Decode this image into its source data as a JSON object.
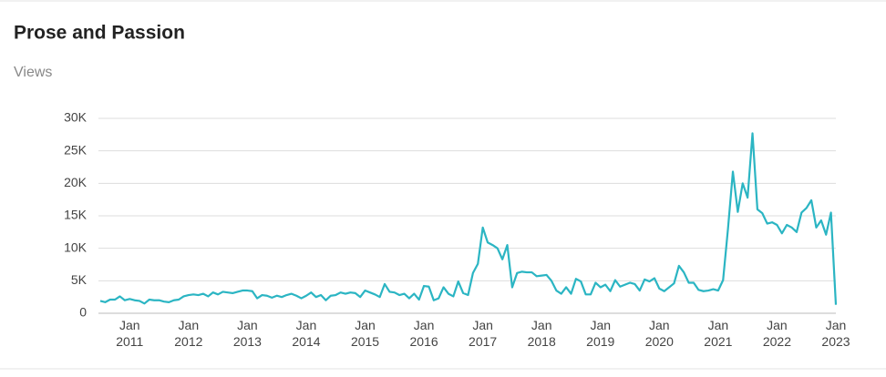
{
  "chart_data": {
    "type": "line",
    "title": "Prose and Passion",
    "subtitle": "Views",
    "x": [
      "2010-07",
      "2010-08",
      "2010-09",
      "2010-10",
      "2010-11",
      "2010-12",
      "2011-01",
      "2011-02",
      "2011-03",
      "2011-04",
      "2011-05",
      "2011-06",
      "2011-07",
      "2011-08",
      "2011-09",
      "2011-10",
      "2011-11",
      "2011-12",
      "2012-01",
      "2012-02",
      "2012-03",
      "2012-04",
      "2012-05",
      "2012-06",
      "2012-07",
      "2012-08",
      "2012-09",
      "2012-10",
      "2012-11",
      "2012-12",
      "2013-01",
      "2013-02",
      "2013-03",
      "2013-04",
      "2013-05",
      "2013-06",
      "2013-07",
      "2013-08",
      "2013-09",
      "2013-10",
      "2013-11",
      "2013-12",
      "2014-01",
      "2014-02",
      "2014-03",
      "2014-04",
      "2014-05",
      "2014-06",
      "2014-07",
      "2014-08",
      "2014-09",
      "2014-10",
      "2014-11",
      "2014-12",
      "2015-01",
      "2015-02",
      "2015-03",
      "2015-04",
      "2015-05",
      "2015-06",
      "2015-07",
      "2015-08",
      "2015-09",
      "2015-10",
      "2015-11",
      "2015-12",
      "2016-01",
      "2016-02",
      "2016-03",
      "2016-04",
      "2016-05",
      "2016-06",
      "2016-07",
      "2016-08",
      "2016-09",
      "2016-10",
      "2016-11",
      "2016-12",
      "2017-01",
      "2017-02",
      "2017-03",
      "2017-04",
      "2017-05",
      "2017-06",
      "2017-07",
      "2017-08",
      "2017-09",
      "2017-10",
      "2017-11",
      "2017-12",
      "2018-01",
      "2018-02",
      "2018-03",
      "2018-04",
      "2018-05",
      "2018-06",
      "2018-07",
      "2018-08",
      "2018-09",
      "2018-10",
      "2018-11",
      "2018-12",
      "2019-01",
      "2019-02",
      "2019-03",
      "2019-04",
      "2019-05",
      "2019-06",
      "2019-07",
      "2019-08",
      "2019-09",
      "2019-10",
      "2019-11",
      "2019-12",
      "2020-01",
      "2020-02",
      "2020-03",
      "2020-04",
      "2020-05",
      "2020-06",
      "2020-07",
      "2020-08",
      "2020-09",
      "2020-10",
      "2020-11",
      "2020-12",
      "2021-01",
      "2021-02",
      "2021-03",
      "2021-04",
      "2021-05",
      "2021-06",
      "2021-07",
      "2021-08",
      "2021-09",
      "2021-10",
      "2021-11",
      "2021-12",
      "2022-01",
      "2022-02",
      "2022-03",
      "2022-04",
      "2022-05",
      "2022-06",
      "2022-07",
      "2022-08",
      "2022-09",
      "2022-10",
      "2022-11",
      "2022-12",
      "2023-01"
    ],
    "series": [
      {
        "name": "Views",
        "color": "#2bb5c3",
        "values": [
          1900,
          1700,
          2100,
          2100,
          2600,
          2000,
          2200,
          2000,
          1900,
          1500,
          2100,
          2000,
          2000,
          1800,
          1700,
          2000,
          2100,
          2600,
          2800,
          2900,
          2800,
          3000,
          2600,
          3200,
          2900,
          3300,
          3200,
          3100,
          3300,
          3500,
          3500,
          3400,
          2300,
          2800,
          2700,
          2400,
          2700,
          2500,
          2800,
          3000,
          2700,
          2300,
          2700,
          3200,
          2500,
          2800,
          2000,
          2700,
          2800,
          3200,
          3000,
          3200,
          3100,
          2500,
          3500,
          3200,
          2900,
          2500,
          4500,
          3300,
          3200,
          2800,
          3000,
          2300,
          3000,
          2100,
          4200,
          4100,
          2000,
          2300,
          4000,
          3000,
          2600,
          4900,
          3100,
          2800,
          6200,
          7600,
          13200,
          10900,
          10500,
          10000,
          8300,
          10500,
          4000,
          6200,
          6400,
          6300,
          6300,
          5700,
          5800,
          5900,
          5000,
          3500,
          3000,
          4000,
          3000,
          5300,
          4900,
          2900,
          2900,
          4700,
          4000,
          4400,
          3400,
          5100,
          4100,
          4400,
          4700,
          4500,
          3500,
          5200,
          4900,
          5400,
          3800,
          3400,
          4000,
          4600,
          7300,
          6300,
          4700,
          4700,
          3600,
          3400,
          3500,
          3700,
          3500,
          5100,
          13000,
          21800,
          15600,
          20000,
          17800,
          27700,
          16000,
          15400,
          13800,
          14000,
          13600,
          12300,
          13600,
          13200,
          12500,
          15500,
          16200,
          17400,
          13200,
          14300,
          12100,
          15500,
          1300
        ]
      }
    ],
    "xlim": [
      "2010-07",
      "2023-01"
    ],
    "xticks": [
      {
        "value": "2011-01",
        "label": "Jan 2011"
      },
      {
        "value": "2012-01",
        "label": "Jan 2012"
      },
      {
        "value": "2013-01",
        "label": "Jan 2013"
      },
      {
        "value": "2014-01",
        "label": "Jan 2014"
      },
      {
        "value": "2015-01",
        "label": "Jan 2015"
      },
      {
        "value": "2016-01",
        "label": "Jan 2016"
      },
      {
        "value": "2017-01",
        "label": "Jan 2017"
      },
      {
        "value": "2018-01",
        "label": "Jan 2018"
      },
      {
        "value": "2019-01",
        "label": "Jan 2019"
      },
      {
        "value": "2020-01",
        "label": "Jan 2020"
      },
      {
        "value": "2021-01",
        "label": "Jan 2021"
      },
      {
        "value": "2022-01",
        "label": "Jan 2022"
      },
      {
        "value": "2023-01",
        "label": "Jan 2023"
      }
    ],
    "ylim": [
      0,
      30000
    ],
    "yticks": [
      0,
      {
        "value": 5000,
        "label": "5K"
      },
      {
        "value": 10000,
        "label": "10K"
      },
      {
        "value": 15000,
        "label": "15K"
      },
      {
        "value": 20000,
        "label": "20K"
      },
      {
        "value": 25000,
        "label": "25K"
      },
      {
        "value": 30000,
        "label": "30K"
      }
    ],
    "grid": true
  }
}
